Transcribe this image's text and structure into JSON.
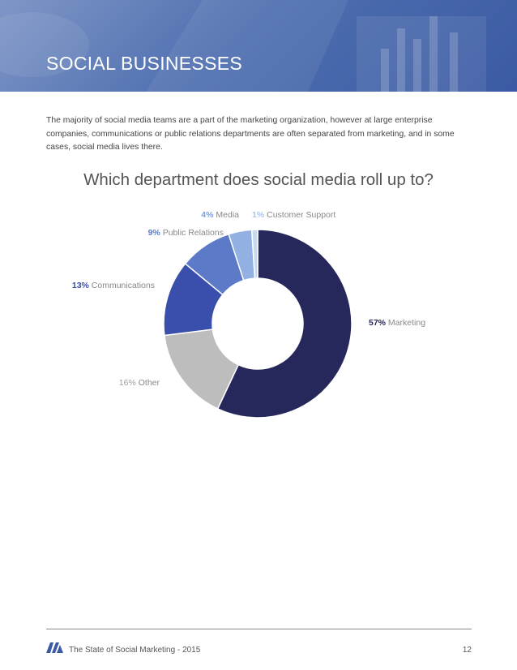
{
  "header": {
    "title": "SOCIAL BUSINESSES"
  },
  "intro": {
    "text": "The majority of social media teams are a part of the marketing organization, however at large enterprise companies, communications or public relations departments are often separated from marketing, and in some cases, social media lives there."
  },
  "colors": {
    "marketing": "#26275b",
    "other": "#bdbdbd",
    "communications": "#3a4fab",
    "public_relations": "#5c7ac8",
    "media": "#93b0e3",
    "customer_support": "#c7d8f1"
  },
  "chart_data": {
    "type": "pie",
    "donut": true,
    "title": "Which department does social media roll up to?",
    "categories": [
      "Marketing",
      "Other",
      "Communications",
      "Public Relations",
      "Media",
      "Customer Support"
    ],
    "values": [
      57,
      16,
      13,
      9,
      4,
      1
    ],
    "value_labels": [
      "57%",
      "16%",
      "13%",
      "9%",
      "4%",
      "1%"
    ],
    "unit": "%"
  },
  "footer": {
    "publication": "The State of Social Marketing - 2015",
    "page_number": "12"
  }
}
